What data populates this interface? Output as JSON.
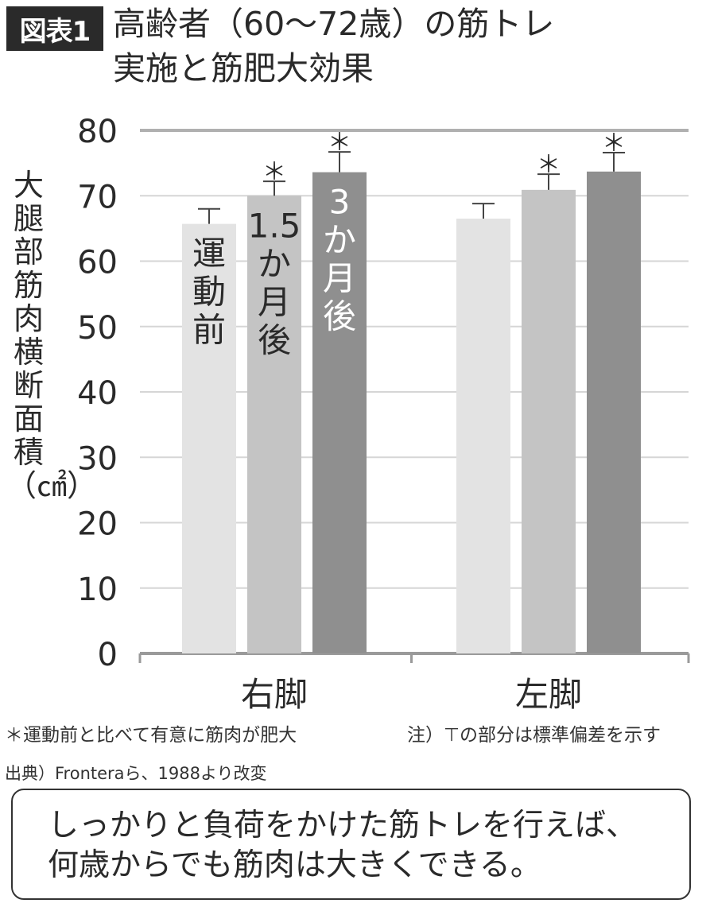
{
  "figure_label": "図表1",
  "title_lines": [
    "高齢者（60〜72歳）の筋トレ",
    "実施と筋肥大効果"
  ],
  "ylabel": "大腿部筋肉横断面積（㎠）",
  "footnote_significance": "＊運動前と比べて有意に筋肉が肥大",
  "footnote_errorbar": "注）⊤の部分は標準偏差を示す",
  "source": "出典）Fronteraら、1988より改変",
  "callout_lines": [
    "しっかりと負荷をかけた筋トレを行えば、",
    "何歳からでも筋肉は大きくできる。"
  ],
  "colors": {
    "series_before": "#e3e3e3",
    "series_1_5m": "#c4c4c4",
    "series_3m": "#8f8f8f",
    "grid": "#d6d6d6",
    "top_grid": "#b0b0b0",
    "text": "#2a2a2a"
  },
  "chart_data": {
    "type": "bar",
    "title": "高齢者（60〜72歳）の筋トレ実施と筋肥大効果",
    "xlabel": "",
    "ylabel": "大腿部筋肉横断面積（㎠）",
    "ylim": [
      0,
      80
    ],
    "yticks": [
      0,
      10,
      20,
      30,
      40,
      50,
      60,
      70,
      80
    ],
    "grid": true,
    "categories": [
      "右脚",
      "左脚"
    ],
    "series": [
      {
        "name": "運動前",
        "values": [
          65.7,
          66.5
        ],
        "error": [
          2.3,
          2.3
        ],
        "significant": [
          false,
          false
        ]
      },
      {
        "name": "1.5か月後",
        "values": [
          70.0,
          70.9
        ],
        "error": [
          2.2,
          2.4
        ],
        "significant": [
          true,
          true
        ]
      },
      {
        "name": "3か月後",
        "values": [
          73.6,
          73.7
        ],
        "error": [
          3.1,
          2.9
        ],
        "significant": [
          true,
          true
        ]
      }
    ],
    "significance_mark": "＊"
  }
}
